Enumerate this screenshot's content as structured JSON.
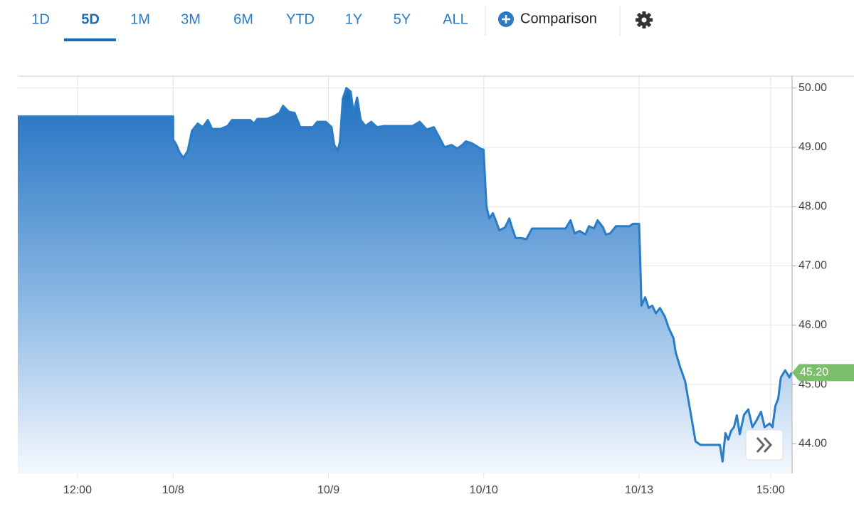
{
  "toolbar": {
    "tabs": [
      "1D",
      "5D",
      "1M",
      "3M",
      "6M",
      "YTD",
      "1Y",
      "5Y",
      "ALL"
    ],
    "active": "5D",
    "comparison": "Comparison"
  },
  "chart_data": {
    "type": "area",
    "color": "#2a7cc7",
    "grid": true,
    "x": [
      0,
      6.5,
      6.5,
      6.64,
      6.76,
      6.93,
      7.11,
      7.29,
      7.53,
      7.74,
      7.95,
      8.13,
      8.48,
      8.78,
      8.96,
      9.73,
      9.88,
      10.03,
      10.42,
      10.71,
      10.95,
      11.1,
      11.34,
      11.58,
      11.82,
      12.35,
      12.53,
      12.89,
      13.13,
      13.24,
      13.39,
      13.48,
      13.6,
      13.75,
      13.93,
      14.05,
      14.2,
      14.35,
      14.55,
      14.79,
      15.03,
      15.33,
      16.52,
      16.82,
      17.11,
      17.41,
      17.65,
      17.86,
      18.15,
      18.39,
      18.6,
      18.75,
      18.99,
      19.2,
      19.35,
      19.49,
      19.61,
      19.73,
      19.88,
      20.0,
      20.15,
      20.39,
      20.57,
      20.68,
      20.83,
      21.07,
      21.28,
      21.52,
      21.88,
      22.92,
      23.13,
      23.3,
      23.51,
      23.75,
      23.9,
      24.11,
      24.26,
      24.49,
      24.61,
      24.79,
      25.03,
      25.6,
      25.74,
      26.0,
      26.1,
      26.25,
      26.4,
      26.55,
      26.7,
      26.87,
      27.08,
      27.23,
      27.44,
      27.53,
      27.71,
      27.92,
      28.13,
      28.36,
      28.57,
      29.38,
      29.49,
      29.61,
      29.73,
      29.85,
      29.97,
      30.09,
      30.21,
      30.39,
      30.57,
      30.74,
      30.92,
      31.1,
      31.25,
      31.46,
      31.58,
      31.7,
      31.82,
      31.93,
      32.11,
      32.29,
      32.38
    ],
    "values": [
      49.52,
      49.52,
      49.13,
      49.04,
      48.92,
      48.82,
      48.94,
      49.28,
      49.4,
      49.34,
      49.46,
      49.31,
      49.31,
      49.36,
      49.46,
      49.46,
      49.4,
      49.48,
      49.48,
      49.52,
      49.58,
      49.7,
      49.6,
      49.58,
      49.34,
      49.34,
      49.43,
      49.43,
      49.34,
      49.04,
      48.94,
      49.1,
      49.82,
      50.0,
      49.94,
      49.58,
      49.84,
      49.46,
      49.36,
      49.43,
      49.34,
      49.36,
      49.36,
      49.43,
      49.3,
      49.34,
      49.16,
      49.0,
      49.04,
      48.98,
      49.04,
      49.1,
      49.07,
      49.02,
      48.98,
      48.96,
      48.01,
      47.8,
      47.89,
      47.77,
      47.6,
      47.65,
      47.8,
      47.65,
      47.47,
      47.47,
      47.45,
      47.63,
      47.63,
      47.63,
      47.77,
      47.55,
      47.59,
      47.53,
      47.67,
      47.63,
      47.77,
      47.65,
      47.53,
      47.55,
      47.67,
      47.67,
      47.71,
      47.71,
      46.33,
      46.47,
      46.29,
      46.33,
      46.2,
      46.29,
      46.14,
      45.96,
      45.78,
      45.54,
      45.3,
      45.06,
      44.58,
      44.04,
      43.98,
      43.98,
      43.7,
      44.18,
      44.07,
      44.22,
      44.28,
      44.48,
      44.16,
      44.49,
      44.58,
      44.28,
      44.4,
      44.54,
      44.28,
      44.34,
      44.28,
      44.64,
      44.76,
      45.12,
      45.24,
      45.12,
      45.2
    ],
    "xlim": [
      0,
      32.4
    ],
    "ylim": [
      43.5,
      50.2
    ],
    "xticks": [
      {
        "value": 2.5,
        "label": "12:00"
      },
      {
        "value": 6.5,
        "label": "10/8"
      },
      {
        "value": 13,
        "label": "10/9"
      },
      {
        "value": 19.5,
        "label": "10/10"
      },
      {
        "value": 26,
        "label": "10/13"
      },
      {
        "value": 31.5,
        "label": "15:00"
      }
    ],
    "yticks": [
      {
        "value": 44,
        "label": "44.00"
      },
      {
        "value": 45,
        "label": "45.00"
      },
      {
        "value": 46,
        "label": "46.00"
      },
      {
        "value": 47,
        "label": "47.00"
      },
      {
        "value": 48,
        "label": "48.00"
      },
      {
        "value": 49,
        "label": "49.00"
      },
      {
        "value": 50,
        "label": "50.00"
      }
    ],
    "annotations": [
      {
        "value": 45.2,
        "label": "45.20",
        "color": "#7cbf6a"
      }
    ]
  }
}
